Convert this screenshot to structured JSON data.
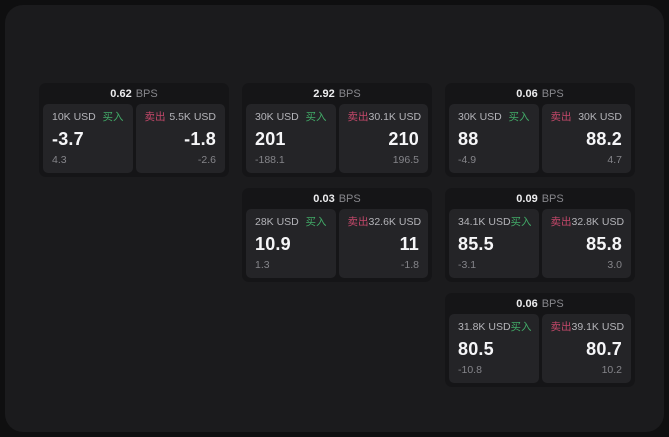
{
  "labels": {
    "bps_unit": "BPS",
    "buy": "买入",
    "sell": "卖出"
  },
  "colors": {
    "buy_green": "#42ab68",
    "sell_red": "#c4486a"
  },
  "cards": [
    {
      "bps": "0.62",
      "grid": {
        "col": 1,
        "row": 1
      },
      "buy": {
        "amount": "10K USD",
        "value": "-3.7",
        "sub": "4.3"
      },
      "sell": {
        "amount": "5.5K USD",
        "value": "-1.8",
        "sub": "-2.6"
      }
    },
    {
      "bps": "2.92",
      "grid": {
        "col": 2,
        "row": 1
      },
      "buy": {
        "amount": "30K USD",
        "value": "201",
        "sub": "-188.1"
      },
      "sell": {
        "amount": "30.1K USD",
        "value": "210",
        "sub": "196.5"
      }
    },
    {
      "bps": "0.06",
      "grid": {
        "col": 3,
        "row": 1
      },
      "buy": {
        "amount": "30K USD",
        "value": "88",
        "sub": "-4.9"
      },
      "sell": {
        "amount": "30K USD",
        "value": "88.2",
        "sub": "4.7"
      }
    },
    {
      "bps": "0.03",
      "grid": {
        "col": 2,
        "row": 2
      },
      "buy": {
        "amount": "28K USD",
        "value": "10.9",
        "sub": "1.3"
      },
      "sell": {
        "amount": "32.6K USD",
        "value": "11",
        "sub": "-1.8"
      }
    },
    {
      "bps": "0.09",
      "grid": {
        "col": 3,
        "row": 2
      },
      "buy": {
        "amount": "34.1K USD",
        "value": "85.5",
        "sub": "-3.1"
      },
      "sell": {
        "amount": "32.8K USD",
        "value": "85.8",
        "sub": "3.0"
      }
    },
    {
      "bps": "0.06",
      "grid": {
        "col": 3,
        "row": 3
      },
      "buy": {
        "amount": "31.8K USD",
        "value": "80.5",
        "sub": "-10.8"
      },
      "sell": {
        "amount": "39.1K USD",
        "value": "80.7",
        "sub": "10.2"
      }
    }
  ]
}
